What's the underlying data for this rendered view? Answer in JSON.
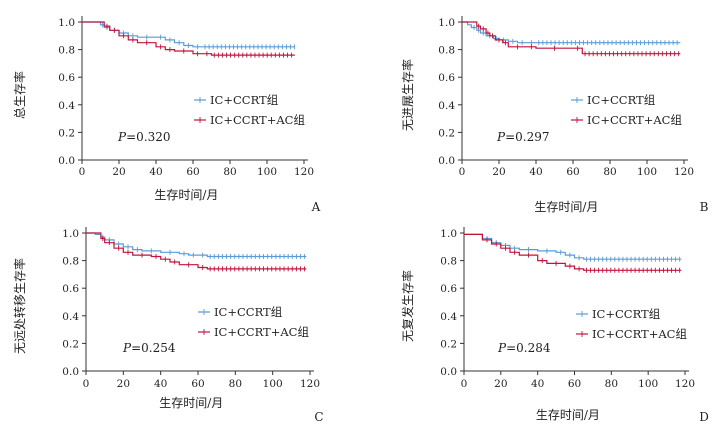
{
  "chart_data": [
    {
      "type": "line",
      "panel": "A",
      "xlabel": "生存时间/月",
      "ylabel": "总生存率",
      "p_value": "0.320",
      "xlim": [
        0,
        120
      ],
      "ylim": [
        0.0,
        1.0
      ],
      "xticks": [
        "0",
        "20",
        "40",
        "60",
        "80",
        "100",
        "120"
      ],
      "yticks": [
        "0.0",
        "0.2",
        "0.4",
        "0.6",
        "0.8",
        "1.0"
      ],
      "legend_position": "center-right",
      "series": [
        {
          "name": "IC+CCRT组",
          "color": "#5b9bd5",
          "x": [
            0,
            8,
            10,
            12,
            15,
            20,
            25,
            30,
            40,
            45,
            50,
            55,
            60,
            65,
            115
          ],
          "y": [
            1.0,
            1.0,
            0.98,
            0.96,
            0.94,
            0.92,
            0.9,
            0.89,
            0.89,
            0.87,
            0.85,
            0.83,
            0.82,
            0.82,
            0.82
          ]
        },
        {
          "name": "IC+CCRT+AC组",
          "color": "#c0143c",
          "x": [
            0,
            10,
            12,
            15,
            20,
            25,
            30,
            40,
            45,
            50,
            60,
            65,
            70,
            115
          ],
          "y": [
            1.0,
            1.0,
            0.97,
            0.94,
            0.9,
            0.87,
            0.85,
            0.82,
            0.8,
            0.79,
            0.77,
            0.77,
            0.76,
            0.76
          ]
        }
      ]
    },
    {
      "type": "line",
      "panel": "B",
      "xlabel": "生存时间/月",
      "ylabel": "无进展生存率",
      "p_value": "0.297",
      "xlim": [
        0,
        120
      ],
      "ylim": [
        0.0,
        1.0
      ],
      "xticks": [
        "0",
        "20",
        "40",
        "60",
        "80",
        "100",
        "120"
      ],
      "yticks": [
        "0.0",
        "0.2",
        "0.4",
        "0.6",
        "0.8",
        "1.0"
      ],
      "legend_position": "center-right",
      "series": [
        {
          "name": "IC+CCRT组",
          "color": "#5b9bd5",
          "x": [
            0,
            3,
            5,
            8,
            10,
            13,
            17,
            20,
            25,
            30,
            35,
            40,
            118
          ],
          "y": [
            1.0,
            0.98,
            0.96,
            0.94,
            0.92,
            0.9,
            0.88,
            0.87,
            0.86,
            0.85,
            0.85,
            0.85,
            0.85
          ]
        },
        {
          "name": "IC+CCRT+AC组",
          "color": "#c0143c",
          "x": [
            0,
            5,
            8,
            10,
            13,
            15,
            18,
            22,
            25,
            35,
            40,
            60,
            65,
            118
          ],
          "y": [
            1.0,
            1.0,
            0.97,
            0.95,
            0.92,
            0.9,
            0.87,
            0.85,
            0.82,
            0.82,
            0.81,
            0.81,
            0.77,
            0.77
          ]
        }
      ]
    },
    {
      "type": "line",
      "panel": "C",
      "xlabel": "生存时间/月",
      "ylabel": "无远处转移生存率",
      "p_value": "0.254",
      "xlim": [
        0,
        120
      ],
      "ylim": [
        0.0,
        1.0
      ],
      "xticks": [
        "0",
        "20",
        "40",
        "60",
        "80",
        "100",
        "120"
      ],
      "yticks": [
        "0.0",
        "0.2",
        "0.4",
        "0.6",
        "0.8",
        "1.0"
      ],
      "legend_position": "center-right",
      "series": [
        {
          "name": "IC+CCRT组",
          "color": "#5b9bd5",
          "x": [
            0,
            5,
            8,
            10,
            15,
            20,
            25,
            30,
            40,
            50,
            55,
            60,
            65,
            118
          ],
          "y": [
            1.0,
            0.99,
            0.97,
            0.95,
            0.92,
            0.9,
            0.88,
            0.87,
            0.86,
            0.85,
            0.84,
            0.84,
            0.83,
            0.83
          ]
        },
        {
          "name": "IC+CCRT+AC组",
          "color": "#c0143c",
          "x": [
            0,
            5,
            8,
            10,
            15,
            20,
            25,
            35,
            40,
            45,
            50,
            60,
            65,
            118
          ],
          "y": [
            1.0,
            1.0,
            0.96,
            0.93,
            0.89,
            0.86,
            0.84,
            0.83,
            0.81,
            0.79,
            0.77,
            0.75,
            0.74,
            0.74
          ]
        }
      ]
    },
    {
      "type": "line",
      "panel": "D",
      "xlabel": "生存时间/月",
      "ylabel": "无复发生存率",
      "p_value": "0.284",
      "xlim": [
        0,
        120
      ],
      "ylim": [
        0.0,
        1.0
      ],
      "xticks": [
        "0",
        "20",
        "40",
        "60",
        "80",
        "100",
        "120"
      ],
      "yticks": [
        "0.0",
        "0.2",
        "0.4",
        "0.6",
        "0.8",
        "1.0"
      ],
      "legend_position": "center-right",
      "series": [
        {
          "name": "IC+CCRT组",
          "color": "#5b9bd5",
          "x": [
            0,
            5,
            10,
            15,
            20,
            25,
            30,
            40,
            50,
            55,
            60,
            65,
            118
          ],
          "y": [
            0.99,
            0.99,
            0.96,
            0.93,
            0.91,
            0.89,
            0.88,
            0.87,
            0.86,
            0.84,
            0.82,
            0.81,
            0.81
          ]
        },
        {
          "name": "IC+CCRT+AC组",
          "color": "#c0143c",
          "x": [
            0,
            5,
            10,
            15,
            20,
            25,
            30,
            40,
            45,
            55,
            60,
            65,
            118
          ],
          "y": [
            0.99,
            0.99,
            0.95,
            0.92,
            0.89,
            0.86,
            0.84,
            0.8,
            0.78,
            0.76,
            0.74,
            0.73,
            0.73
          ]
        }
      ]
    }
  ]
}
